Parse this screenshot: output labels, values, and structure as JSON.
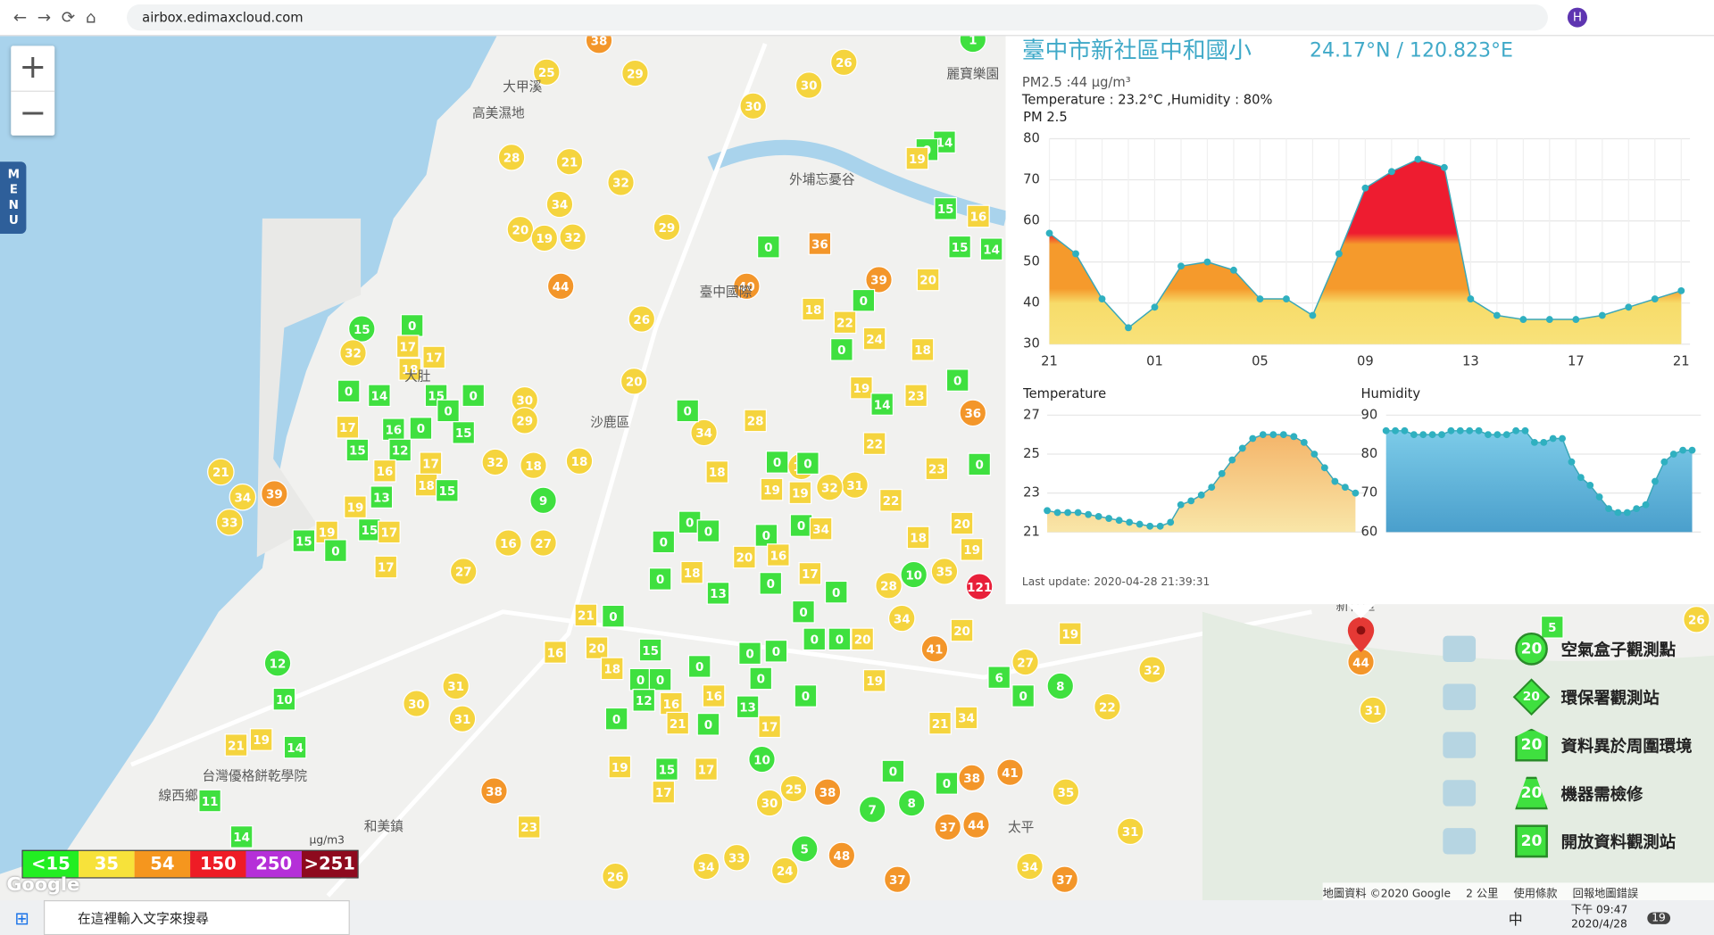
{
  "browser": {
    "url": "airbox.edimaxcloud.com",
    "profile": "H"
  },
  "map": {
    "zoom_in": "+",
    "zoom_out": "−",
    "menu": "MENU",
    "places": [
      "大甲溪",
      "高美濕地",
      "外埔忘憂谷",
      "麗寶樂園",
      "臺中國際",
      "沙鹿區",
      "台灣優格餅乾學院",
      "線西鄉",
      "和美鎮",
      "太平",
      "新社區",
      "大肚"
    ],
    "markers": [
      38,
      25,
      29,
      26,
      30,
      30,
      1,
      28,
      21,
      32,
      34,
      20,
      19,
      32,
      29,
      44,
      40,
      26,
      39,
      15,
      32,
      30,
      29,
      18,
      9,
      32,
      18,
      21,
      39,
      34,
      33,
      16,
      27,
      27,
      12,
      30,
      31,
      31,
      38,
      41,
      121,
      10,
      35,
      28,
      34,
      8,
      27,
      32,
      22,
      31,
      41,
      38,
      37,
      44,
      8,
      7,
      5,
      48,
      38,
      25,
      10,
      30,
      35,
      31,
      34,
      37,
      26,
      34,
      33,
      24,
      37,
      26,
      36,
      19,
      31,
      32,
      20,
      34,
      44,
      0,
      36,
      0,
      17,
      17,
      18,
      0,
      14,
      15,
      0,
      0,
      17,
      16,
      0,
      15,
      15,
      12,
      17,
      16,
      18,
      15,
      13,
      19,
      19,
      15,
      17,
      15,
      0,
      17,
      0,
      0,
      0,
      28,
      18,
      19,
      19,
      0,
      0,
      0,
      0,
      0,
      34,
      18,
      13,
      0,
      20,
      16,
      17,
      0,
      0,
      0,
      0,
      0,
      20,
      0,
      21,
      16,
      20,
      15,
      0,
      0,
      0,
      0,
      18,
      0,
      0,
      16,
      16,
      12,
      0,
      0,
      21,
      0,
      13,
      17,
      15,
      17,
      19,
      17,
      11,
      14,
      14,
      10,
      21,
      19,
      23,
      14,
      0,
      19,
      15,
      15,
      14,
      16,
      20,
      0,
      18,
      22,
      24,
      0,
      18,
      0,
      19,
      14,
      23,
      22,
      23,
      0,
      22,
      18,
      20,
      19,
      20,
      6,
      0,
      0,
      0,
      19,
      5,
      21,
      34,
      19
    ],
    "attribution": "地圖資料 ©2020 Google",
    "scale": "2 公里",
    "terms": "使用條款",
    "report": "回報地圖錯誤",
    "google": "Google"
  },
  "aqi_scale": {
    "unit": "μg/m3",
    "bands": [
      {
        "label": "<15",
        "color": "#22ee22"
      },
      {
        "label": "35",
        "color": "#f7e23a"
      },
      {
        "label": "54",
        "color": "#f5961e"
      },
      {
        "label": "150",
        "color": "#ee1c25"
      },
      {
        "label": "250",
        "color": "#b530d8"
      },
      {
        "label": ">251",
        "color": "#8e0a1e"
      }
    ]
  },
  "legend": [
    {
      "sample": 20,
      "label": "空氣盒子觀測點"
    },
    {
      "sample": 20,
      "label": "環保署觀測站"
    },
    {
      "sample": 20,
      "label": "資料異於周圍環境"
    },
    {
      "sample": 20,
      "label": "機器需檢修"
    },
    {
      "sample": 20,
      "label": "開放資料觀測站"
    }
  ],
  "popup": {
    "title": "臺中市新社區中和國小",
    "coords": "24.17°N / 120.823°E",
    "pm_line": "PM2.5 :44 μg/m³",
    "env_line": "Temperature : 23.2°C ,Humidity : 80%",
    "last_update": "Last update: 2020-04-28 21:39:31",
    "charts": [
      {
        "type": "area",
        "title": "PM 2.5",
        "categories": [
          "21",
          null,
          null,
          null,
          "01",
          null,
          null,
          null,
          "05",
          null,
          null,
          null,
          "09",
          null,
          null,
          null,
          "13",
          null,
          null,
          null,
          "17",
          null,
          null,
          null,
          "21"
        ],
        "values": [
          57,
          52,
          41,
          34,
          39,
          49,
          50,
          48,
          41,
          41,
          37,
          52,
          68,
          72,
          75,
          73,
          41,
          37,
          36,
          36,
          36,
          37,
          39,
          41,
          43
        ],
        "ylim": [
          30,
          80
        ],
        "yticks": [
          30,
          40,
          50,
          60,
          70,
          80
        ]
      },
      {
        "type": "area",
        "title": "Temperature",
        "values": [
          22.1,
          22,
          22,
          22,
          21.9,
          21.8,
          21.7,
          21.6,
          21.5,
          21.4,
          21.3,
          21.3,
          21.5,
          22.4,
          22.6,
          22.9,
          23.3,
          24,
          24.7,
          25.3,
          25.8,
          26,
          26,
          26,
          25.9,
          25.6,
          25,
          24.3,
          23.6,
          23.3,
          23
        ],
        "ylim": [
          21,
          27
        ],
        "yticks": [
          21,
          23,
          25,
          27
        ]
      },
      {
        "type": "area",
        "title": "Humidity",
        "values": [
          86,
          86,
          86,
          85,
          85,
          85,
          85,
          86,
          86,
          86,
          86,
          85,
          85,
          85,
          86,
          86,
          83,
          83,
          84,
          84,
          78,
          74,
          72,
          69,
          66,
          65,
          65,
          66,
          67,
          73,
          78,
          80,
          81,
          81
        ],
        "ylim": [
          60,
          90
        ],
        "yticks": [
          60,
          70,
          80,
          90
        ]
      }
    ]
  },
  "taskbar": {
    "search": "在這裡輸入文字來搜尋",
    "ime": "中",
    "time": "下午 09:47",
    "date": "2020/4/28",
    "notifications": "19"
  }
}
